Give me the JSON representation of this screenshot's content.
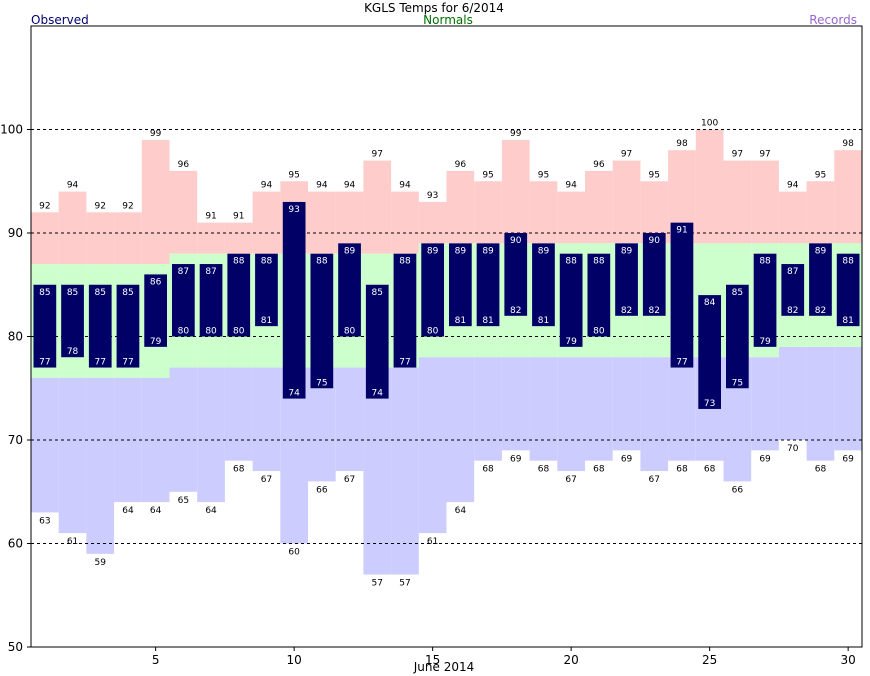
{
  "chart_data": {
    "type": "bar",
    "title": "KGLS Temps for 6/2014",
    "legend": {
      "observed": "Observed",
      "normals": "Normals",
      "records": "Records"
    },
    "xlabel": "June 2014",
    "ylabel": "",
    "xlim": [
      0.5,
      30.5
    ],
    "ylim": [
      50,
      110
    ],
    "x_ticks": [
      "5",
      "10",
      "15",
      "20",
      "25",
      "30"
    ],
    "y_ticks": [
      "50",
      "60",
      "70",
      "80",
      "90",
      "100"
    ],
    "days": [
      1,
      2,
      3,
      4,
      5,
      6,
      7,
      8,
      9,
      10,
      11,
      12,
      13,
      14,
      15,
      16,
      17,
      18,
      19,
      20,
      21,
      22,
      23,
      24,
      25,
      26,
      27,
      28,
      29,
      30
    ],
    "record_high": [
      92,
      94,
      92,
      92,
      99,
      96,
      91,
      91,
      94,
      95,
      94,
      94,
      97,
      94,
      93,
      96,
      95,
      99,
      95,
      94,
      96,
      97,
      95,
      98,
      100,
      97,
      97,
      94,
      95,
      98
    ],
    "record_low": [
      63,
      61,
      59,
      64,
      64,
      65,
      64,
      68,
      67,
      60,
      66,
      67,
      57,
      57,
      61,
      64,
      68,
      69,
      68,
      67,
      68,
      69,
      67,
      68,
      68,
      66,
      69,
      70,
      68,
      69
    ],
    "normal_high": [
      87,
      87,
      87,
      87,
      87,
      88,
      88,
      88,
      88,
      88,
      88,
      88,
      88,
      88,
      89,
      89,
      89,
      89,
      89,
      89,
      89,
      89,
      89,
      89,
      89,
      89,
      89,
      89,
      89,
      89
    ],
    "normal_low": [
      76,
      76,
      76,
      76,
      76,
      77,
      77,
      77,
      77,
      77,
      77,
      77,
      77,
      77,
      78,
      78,
      78,
      78,
      78,
      78,
      78,
      78,
      78,
      78,
      78,
      78,
      78,
      79,
      79,
      79
    ],
    "observed_high": [
      85,
      85,
      85,
      85,
      86,
      87,
      87,
      88,
      88,
      93,
      88,
      89,
      85,
      88,
      89,
      89,
      89,
      90,
      89,
      88,
      88,
      89,
      90,
      91,
      84,
      85,
      88,
      87,
      89,
      88
    ],
    "observed_low": [
      77,
      78,
      77,
      77,
      79,
      80,
      80,
      80,
      81,
      74,
      75,
      80,
      74,
      77,
      80,
      81,
      81,
      82,
      81,
      79,
      80,
      82,
      82,
      77,
      73,
      75,
      79,
      82,
      82,
      81
    ],
    "grid": "dashed horizontal at 60, 70, 80, 90, 100",
    "colors": {
      "observed": "#000066",
      "observed_text": "#ffffff",
      "normal": "#ccffcc",
      "record_high": "#ffcccc",
      "record_low": "#ccccff",
      "normals_label": "#007000",
      "records_label": "#9966cc",
      "observed_label": "#00006e"
    }
  }
}
